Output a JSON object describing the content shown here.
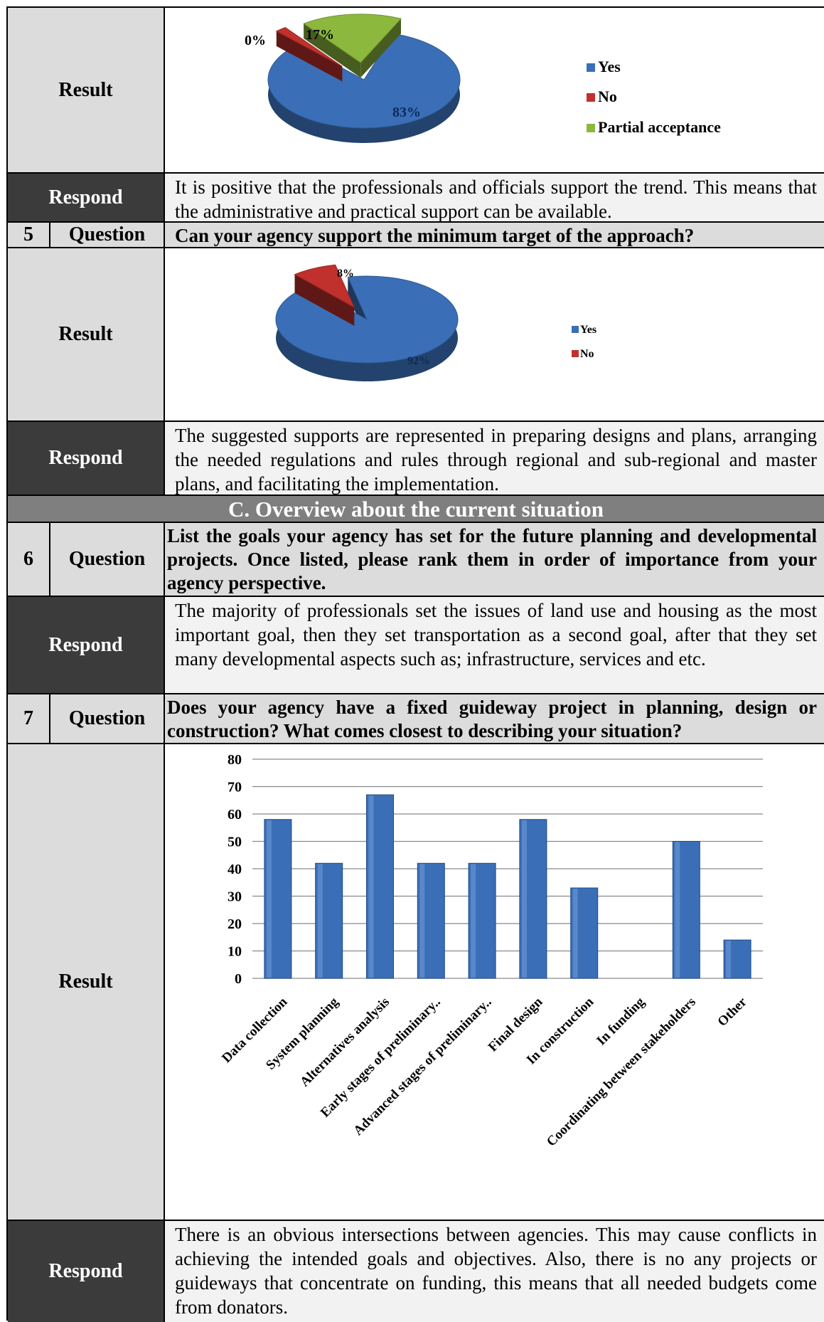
{
  "labels": {
    "result": "Result",
    "respond": "Respond",
    "question": "Question"
  },
  "row1": {
    "respond_text": "It is positive that the professionals and officials support the trend. This means that the administrative and practical support can be available."
  },
  "q5": {
    "number": "5",
    "text": "Can your agency support the minimum target of the approach?",
    "respond_text": "The suggested supports are represented in preparing designs and plans, arranging the needed regulations and rules through regional and sub-regional and master plans, and facilitating the implementation."
  },
  "section_c": {
    "title": "C. Overview about the current situation"
  },
  "q6": {
    "number": "6",
    "text": "List the goals your agency has set for the future planning and developmental projects. Once listed, please rank them in order of importance from your agency perspective.",
    "respond_text": "The majority of professionals set the issues of land use and housing as the most important goal, then they set transportation as a second goal, after that they set many developmental aspects such as; infrastructure, services and etc."
  },
  "q7": {
    "number": "7",
    "text": "Does your agency have a fixed guideway project in planning, design or construction? What comes closest to describing your situation?",
    "respond_text": "There is an obvious intersections between agencies. This may cause conflicts in achieving the intended goals and objectives. Also, there is no any projects or guideways that concentrate on funding, this means that all needed budgets come from donators."
  },
  "chart_data": [
    {
      "type": "pie",
      "categories": [
        "Yes",
        "No",
        "Partial acceptance"
      ],
      "values": [
        83,
        0,
        17
      ],
      "data_labels": [
        "83%",
        "0%",
        "17%"
      ],
      "colors": [
        "#3a6fb7",
        "#c0302c",
        "#8db83e"
      ],
      "legend_placement": "right"
    },
    {
      "type": "pie",
      "categories": [
        "Yes",
        "No"
      ],
      "values": [
        92,
        8
      ],
      "data_labels": [
        "92%",
        "8%"
      ],
      "colors": [
        "#3a6fb7",
        "#c0302c"
      ],
      "legend_placement": "right"
    },
    {
      "type": "bar",
      "categories": [
        "Data collection",
        "System planning",
        "Alternatives analysis",
        "Early stages of preliminary..",
        "Advanced stages of preliminary..",
        "Final design",
        "In construction",
        "In funding",
        "Coordinating between stakeholders",
        "Other"
      ],
      "values": [
        58,
        42,
        67,
        42,
        42,
        58,
        33,
        0,
        50,
        14
      ],
      "ylim": [
        0,
        80
      ],
      "yticks": [
        "0",
        "10",
        "20",
        "30",
        "40",
        "50",
        "60",
        "70",
        "80"
      ],
      "grid": true,
      "color": "#3a6fb7"
    }
  ]
}
